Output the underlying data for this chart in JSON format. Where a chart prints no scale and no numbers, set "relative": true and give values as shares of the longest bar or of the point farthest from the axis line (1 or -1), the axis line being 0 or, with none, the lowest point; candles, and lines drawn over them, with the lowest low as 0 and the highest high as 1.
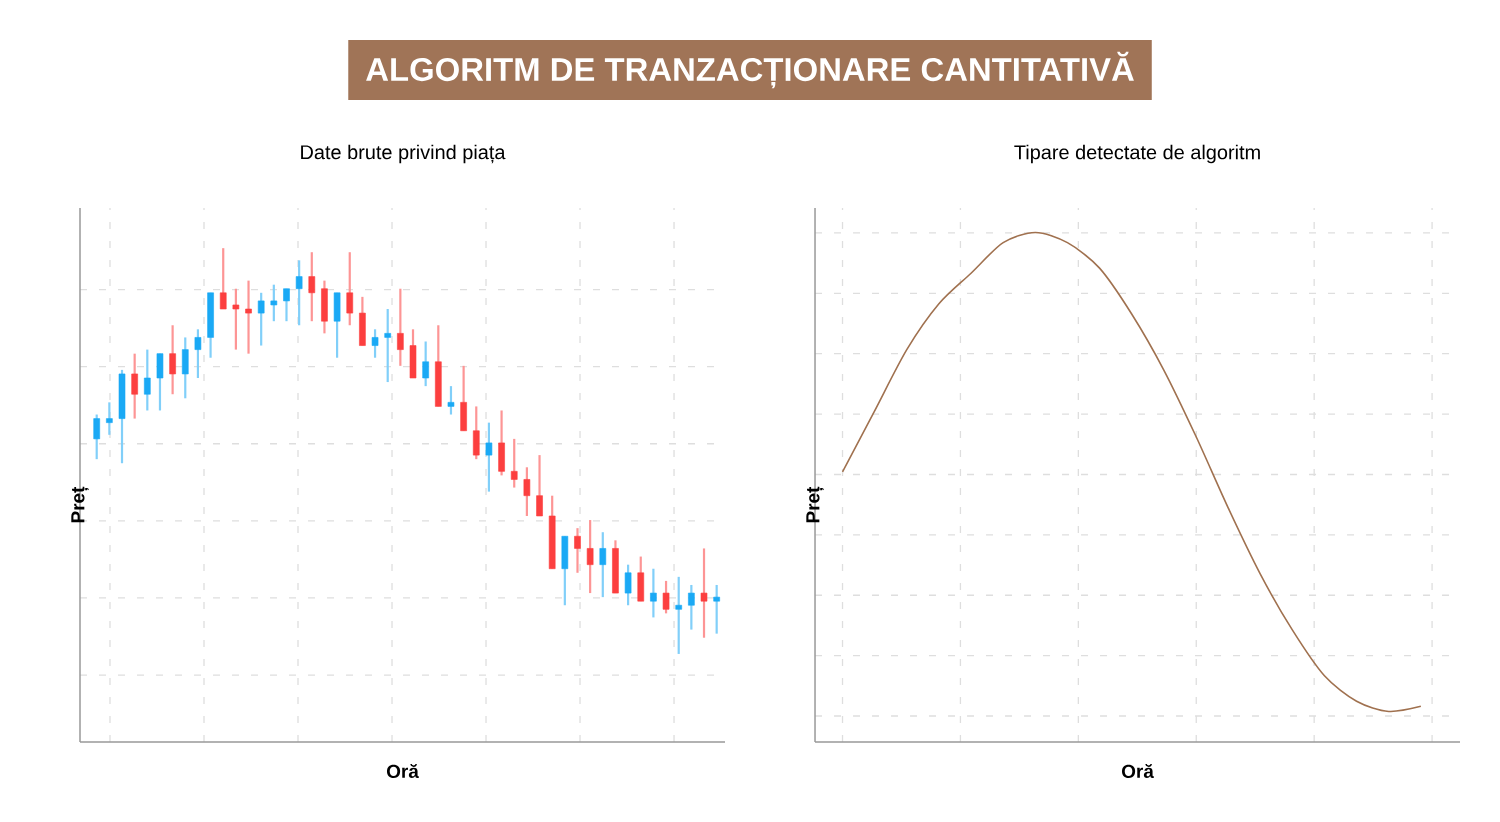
{
  "chart_data": [
    {
      "type": "other",
      "title": "ALGORITM DE TRANZACȚIONARE CANTITATIVĂ",
      "color": "#a07457"
    },
    {
      "type": "candlestick",
      "title": "Date brute privind piața",
      "xlabel": "Oră",
      "ylabel": "Preț",
      "relative": true,
      "grid": true,
      "categories": [
        null,
        null,
        null,
        null,
        null,
        null,
        null,
        null,
        null,
        null,
        null,
        null,
        null,
        null,
        null,
        null,
        null,
        null,
        null,
        null,
        null,
        null,
        null,
        null,
        null,
        null,
        null,
        null,
        null,
        null,
        null,
        null,
        null,
        null,
        null,
        null,
        null,
        null,
        null,
        null,
        null,
        null,
        null,
        null,
        null,
        null,
        null,
        null,
        null,
        null
      ],
      "ohlc": [
        [
          0.53,
          0.59,
          0.48,
          0.58
        ],
        [
          0.57,
          0.62,
          0.54,
          0.58
        ],
        [
          0.58,
          0.7,
          0.47,
          0.69
        ],
        [
          0.69,
          0.74,
          0.58,
          0.64
        ],
        [
          0.64,
          0.75,
          0.6,
          0.68
        ],
        [
          0.68,
          0.74,
          0.6,
          0.74
        ],
        [
          0.74,
          0.81,
          0.64,
          0.69
        ],
        [
          0.69,
          0.78,
          0.63,
          0.75
        ],
        [
          0.75,
          0.8,
          0.68,
          0.78
        ],
        [
          0.78,
          0.89,
          0.73,
          0.89
        ],
        [
          0.89,
          1.0,
          0.85,
          0.85
        ],
        [
          0.86,
          0.9,
          0.75,
          0.85
        ],
        [
          0.85,
          0.92,
          0.74,
          0.84
        ],
        [
          0.84,
          0.89,
          0.76,
          0.87
        ],
        [
          0.86,
          0.91,
          0.82,
          0.87
        ],
        [
          0.87,
          0.9,
          0.82,
          0.9
        ],
        [
          0.9,
          0.97,
          0.81,
          0.93
        ],
        [
          0.93,
          0.99,
          0.82,
          0.89
        ],
        [
          0.9,
          0.92,
          0.79,
          0.82
        ],
        [
          0.82,
          0.89,
          0.73,
          0.89
        ],
        [
          0.89,
          0.99,
          0.81,
          0.84
        ],
        [
          0.84,
          0.88,
          0.76,
          0.76
        ],
        [
          0.76,
          0.8,
          0.73,
          0.78
        ],
        [
          0.78,
          0.85,
          0.67,
          0.79
        ],
        [
          0.79,
          0.9,
          0.71,
          0.75
        ],
        [
          0.76,
          0.8,
          0.68,
          0.68
        ],
        [
          0.68,
          0.77,
          0.66,
          0.72
        ],
        [
          0.72,
          0.81,
          0.61,
          0.61
        ],
        [
          0.61,
          0.66,
          0.59,
          0.62
        ],
        [
          0.62,
          0.71,
          0.55,
          0.55
        ],
        [
          0.55,
          0.61,
          0.48,
          0.49
        ],
        [
          0.49,
          0.57,
          0.4,
          0.52
        ],
        [
          0.52,
          0.6,
          0.44,
          0.45
        ],
        [
          0.45,
          0.53,
          0.41,
          0.43
        ],
        [
          0.43,
          0.46,
          0.34,
          0.39
        ],
        [
          0.39,
          0.49,
          0.34,
          0.34
        ],
        [
          0.34,
          0.39,
          0.21,
          0.21
        ],
        [
          0.21,
          0.29,
          0.12,
          0.29
        ],
        [
          0.29,
          0.31,
          0.2,
          0.26
        ],
        [
          0.26,
          0.33,
          0.15,
          0.22
        ],
        [
          0.22,
          0.3,
          0.14,
          0.26
        ],
        [
          0.26,
          0.28,
          0.15,
          0.15
        ],
        [
          0.15,
          0.22,
          0.12,
          0.2
        ],
        [
          0.2,
          0.24,
          0.13,
          0.13
        ],
        [
          0.13,
          0.21,
          0.09,
          0.15
        ],
        [
          0.15,
          0.18,
          0.1,
          0.11
        ],
        [
          0.11,
          0.19,
          0.0,
          0.12
        ],
        [
          0.12,
          0.17,
          0.06,
          0.15
        ],
        [
          0.15,
          0.26,
          0.04,
          0.13
        ],
        [
          0.13,
          0.17,
          0.05,
          0.14
        ]
      ],
      "colors": [
        "#1aa9f5",
        "#1aa9f5",
        "#1aa9f5",
        "#fc3f3f",
        "#1aa9f5",
        "#1aa9f5",
        "#fc3f3f",
        "#1aa9f5",
        "#1aa9f5",
        "#1aa9f5",
        "#fc3f3f",
        "#fc3f3f",
        "#fc3f3f",
        "#1aa9f5",
        "#1aa9f5",
        "#1aa9f5",
        "#1aa9f5",
        "#fc3f3f",
        "#fc3f3f",
        "#1aa9f5",
        "#fc3f3f",
        "#fc3f3f",
        "#1aa9f5",
        "#1aa9f5",
        "#fc3f3f",
        "#fc3f3f",
        "#1aa9f5",
        "#fc3f3f",
        "#1aa9f5",
        "#fc3f3f",
        "#fc3f3f",
        "#1aa9f5",
        "#fc3f3f",
        "#fc3f3f",
        "#fc3f3f",
        "#fc3f3f",
        "#fc3f3f",
        "#1aa9f5",
        "#fc3f3f",
        "#fc3f3f",
        "#1aa9f5",
        "#fc3f3f",
        "#1aa9f5",
        "#fc3f3f",
        "#1aa9f5",
        "#fc3f3f",
        "#1aa9f5",
        "#1aa9f5",
        "#fc3f3f",
        "#1aa9f5"
      ]
    },
    {
      "type": "line",
      "title": "Tipare detectate de algoritm",
      "xlabel": "Oră",
      "ylabel": "Preț",
      "relative": true,
      "grid": true,
      "color": "#a0714f",
      "categories": [
        null,
        null,
        null,
        null,
        null,
        null,
        null,
        null,
        null,
        null,
        null,
        null,
        null,
        null,
        null,
        null,
        null,
        null,
        null
      ],
      "values": [
        0.53,
        0.65,
        0.77,
        0.86,
        0.92,
        0.98,
        1.0,
        0.98,
        0.93,
        0.84,
        0.73,
        0.6,
        0.46,
        0.33,
        0.22,
        0.13,
        0.08,
        0.06,
        0.07
      ]
    }
  ]
}
